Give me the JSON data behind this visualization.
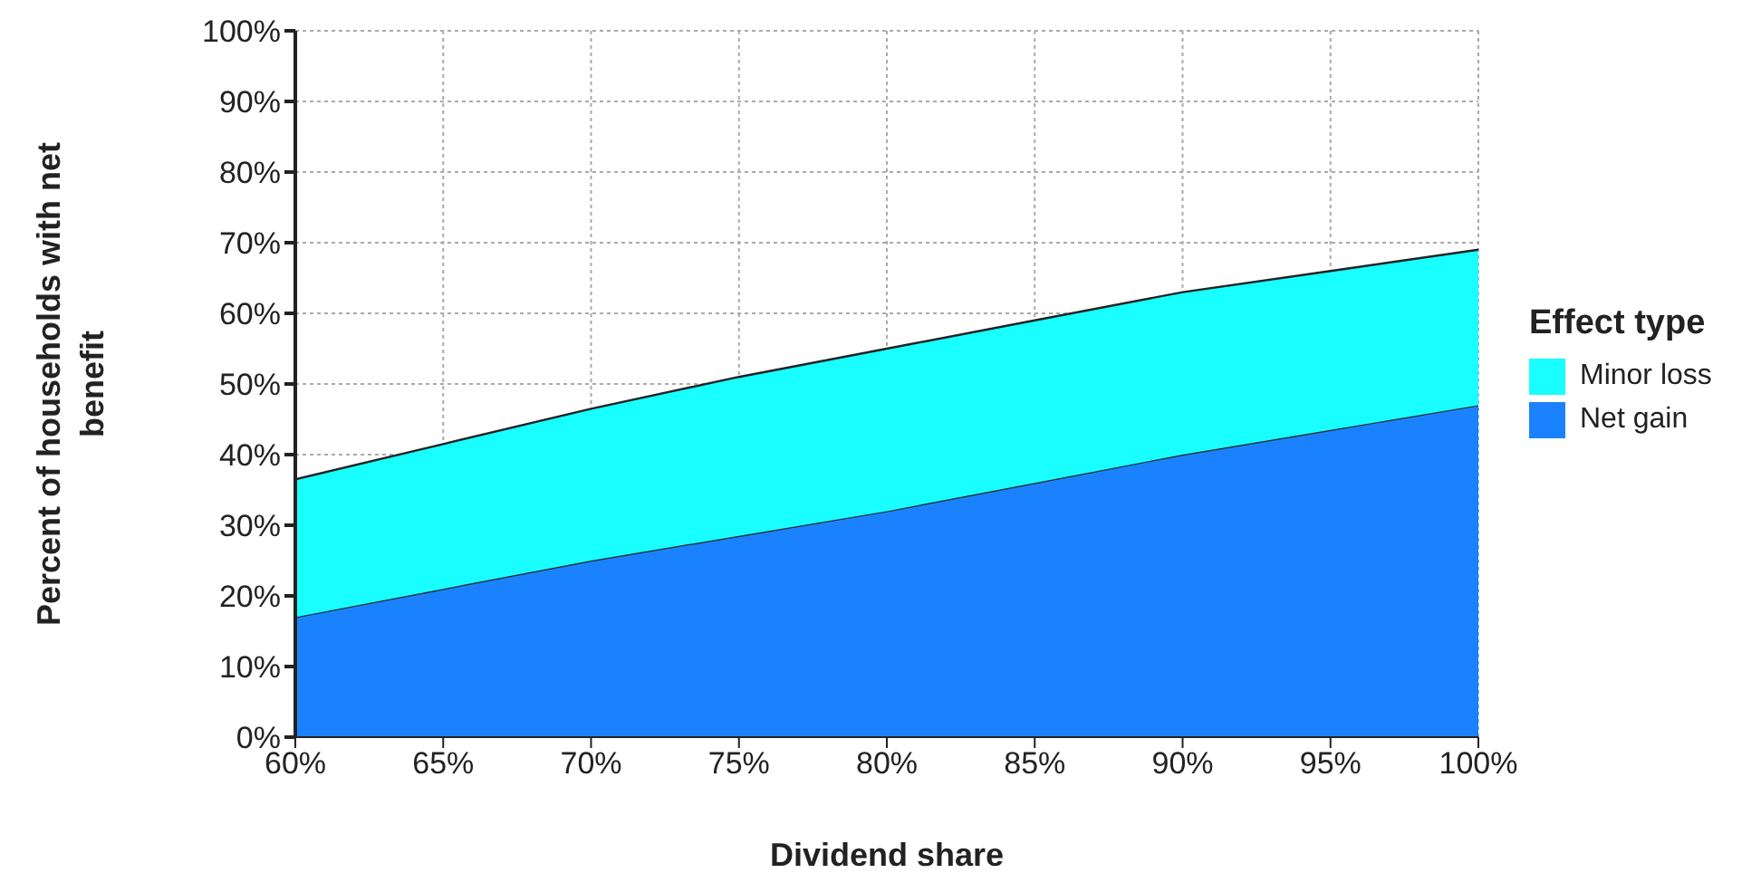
{
  "chart_data": {
    "type": "area",
    "stacked": true,
    "xlabel": "Dividend share",
    "ylabel": "Percent of households with net benefit",
    "legend_title": "Effect type",
    "legend": "right",
    "grid": true,
    "x": [
      60,
      65,
      70,
      75,
      80,
      85,
      90,
      95,
      100
    ],
    "series": [
      {
        "name": "Net gain",
        "color": "#1a82ff",
        "values": [
          17,
          21,
          25,
          28.5,
          32,
          36,
          40,
          43.5,
          47
        ]
      },
      {
        "name": "Minor loss",
        "color": "#19ffff",
        "values": [
          19.5,
          20.5,
          21.5,
          22.5,
          23,
          23,
          23,
          22.5,
          22
        ]
      }
    ],
    "xlim": [
      60,
      100
    ],
    "xticks": [
      {
        "value": 60,
        "label": "60%"
      },
      {
        "value": 65,
        "label": "65%"
      },
      {
        "value": 70,
        "label": "70%"
      },
      {
        "value": 75,
        "label": "75%"
      },
      {
        "value": 80,
        "label": "80%"
      },
      {
        "value": 85,
        "label": "85%"
      },
      {
        "value": 90,
        "label": "90%"
      },
      {
        "value": 95,
        "label": "95%"
      },
      {
        "value": 100,
        "label": "100%"
      }
    ],
    "ylim": [
      0,
      100
    ],
    "yticks": [
      {
        "value": 0,
        "label": "0%"
      },
      {
        "value": 10,
        "label": "10%"
      },
      {
        "value": 20,
        "label": "20%"
      },
      {
        "value": 30,
        "label": "30%"
      },
      {
        "value": 40,
        "label": "40%"
      },
      {
        "value": 50,
        "label": "50%"
      },
      {
        "value": 60,
        "label": "60%"
      },
      {
        "value": 70,
        "label": "70%"
      },
      {
        "value": 80,
        "label": "80%"
      },
      {
        "value": 90,
        "label": "90%"
      },
      {
        "value": 100,
        "label": "100%"
      }
    ]
  }
}
